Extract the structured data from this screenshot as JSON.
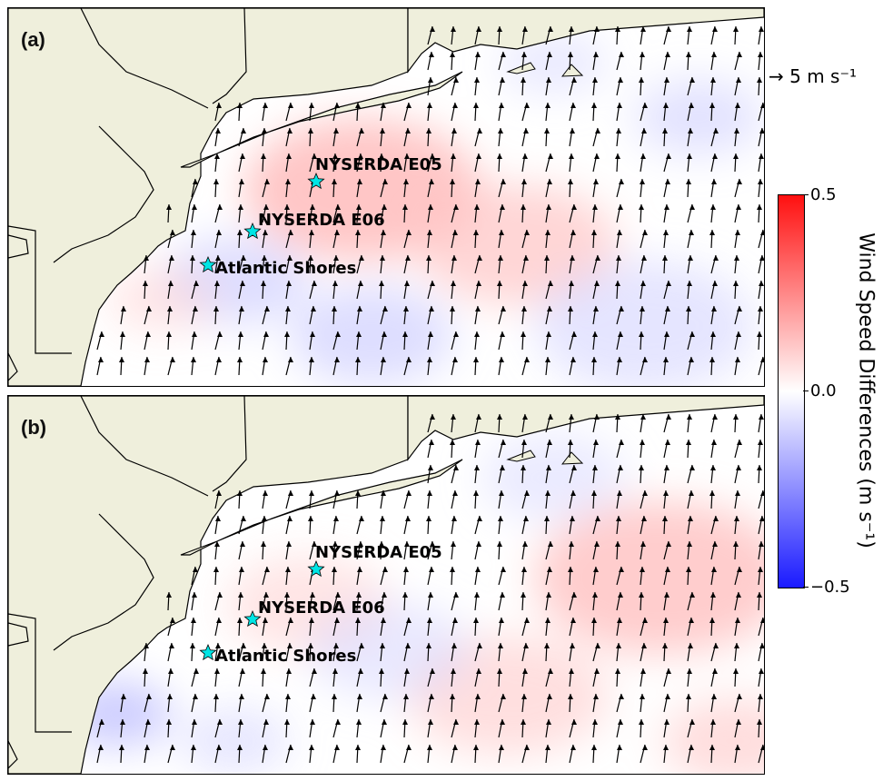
{
  "panels": [
    {
      "label": "(a)",
      "sites": [
        "NYSERDA E05",
        "NYSERDA E06",
        "Atlantic Shores"
      ]
    },
    {
      "label": "(b)",
      "sites": [
        "NYSERDA E05",
        "NYSERDA E06",
        "Atlantic Shores"
      ]
    }
  ],
  "reference_arrow": {
    "value": "5 m s⁻¹"
  },
  "colorbar": {
    "title": "Wind Speed Differences (m s⁻¹)",
    "max_label": "0.5",
    "mid_label": "0.0",
    "min_label": "−0.5",
    "range": [
      -0.5,
      0.5
    ],
    "colors": {
      "positive": "#ff1010",
      "zero": "#ffffff",
      "negative": "#1a1aff"
    }
  },
  "colors": {
    "land": "#efefdc",
    "site_marker": "#00e5e5",
    "coastline": "#000000"
  }
}
